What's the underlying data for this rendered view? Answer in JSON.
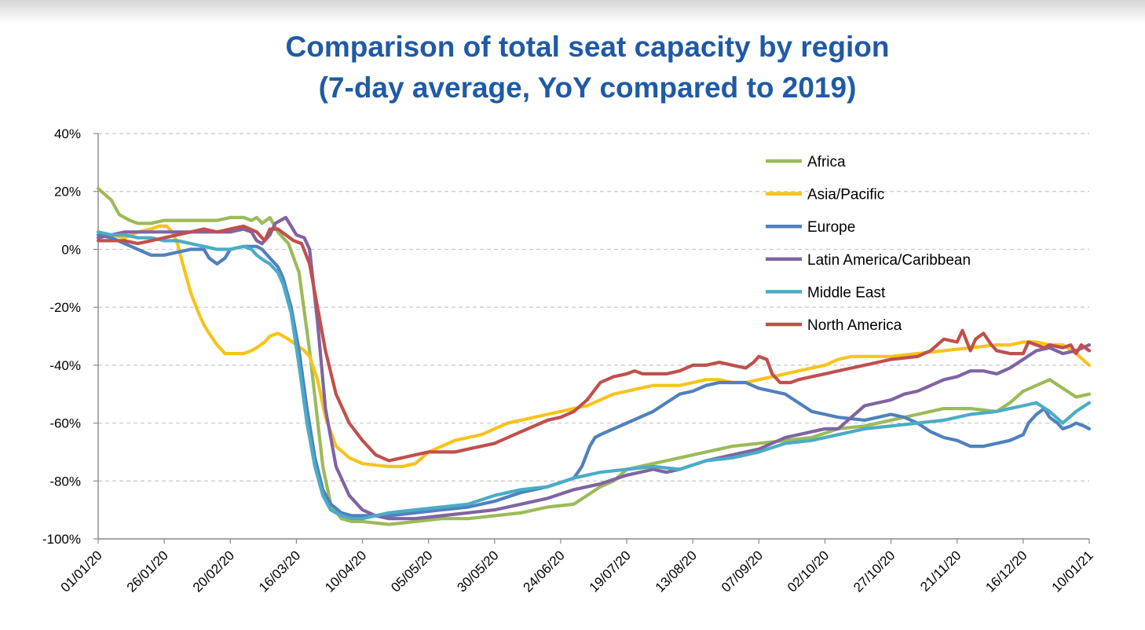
{
  "chart_data": {
    "type": "line",
    "title": "Comparison of total seat capacity by region",
    "subtitle": "(7-day average, YoY compared to 2019)",
    "xlabel": "",
    "ylabel": "",
    "ylim": [
      -100,
      40
    ],
    "y_ticks": [
      "40%",
      "20%",
      "0%",
      "-20%",
      "-40%",
      "-60%",
      "-80%",
      "-100%"
    ],
    "y_tick_values": [
      40,
      20,
      0,
      -20,
      -40,
      -60,
      -80,
      -100
    ],
    "x_tick_labels": [
      "01/01/20",
      "26/01/20",
      "20/02/20",
      "16/03/20",
      "10/04/20",
      "05/05/20",
      "30/05/20",
      "24/06/20",
      "19/07/20",
      "13/08/20",
      "07/09/20",
      "02/10/20",
      "27/10/20",
      "21/11/20",
      "16/12/20",
      "10/01/21"
    ],
    "x_tick_days": [
      0,
      25,
      50,
      75,
      100,
      125,
      150,
      175,
      200,
      225,
      250,
      275,
      300,
      325,
      350,
      375
    ],
    "xlim": [
      0,
      375
    ],
    "grid": "horizontal-dashed",
    "legend_position": "top-right",
    "series": [
      {
        "name": "Africa",
        "color": "#9bbb59",
        "x": [
          0,
          5,
          8,
          12,
          15,
          20,
          25,
          30,
          35,
          40,
          45,
          50,
          55,
          58,
          60,
          62,
          65,
          68,
          72,
          76,
          80,
          85,
          88,
          92,
          96,
          100,
          110,
          120,
          130,
          140,
          150,
          160,
          170,
          180,
          185,
          190,
          195,
          200,
          210,
          215,
          220,
          230,
          240,
          250,
          260,
          270,
          280,
          290,
          300,
          310,
          320,
          330,
          340,
          345,
          350,
          355,
          360,
          365,
          370,
          375
        ],
        "y": [
          21,
          17,
          12,
          10,
          9,
          9,
          10,
          10,
          10,
          10,
          10,
          11,
          11,
          10,
          11,
          9,
          11,
          6,
          2,
          -8,
          -35,
          -75,
          -88,
          -93,
          -94,
          -94,
          -95,
          -94,
          -93,
          -93,
          -92,
          -91,
          -89,
          -88,
          -85,
          -82,
          -80,
          -76,
          -74,
          -73,
          -72,
          -70,
          -68,
          -67,
          -66,
          -65,
          -62,
          -61,
          -59,
          -57,
          -55,
          -55,
          -56,
          -53,
          -49,
          -47,
          -45,
          -48,
          -51,
          -50
        ]
      },
      {
        "name": "Asia/Pacific",
        "color": "#f7c31c",
        "x": [
          0,
          5,
          10,
          15,
          20,
          23,
          26,
          28,
          30,
          32,
          35,
          38,
          40,
          42,
          45,
          48,
          50,
          55,
          58,
          60,
          63,
          65,
          68,
          72,
          75,
          78,
          80,
          83,
          86,
          90,
          95,
          100,
          110,
          115,
          120,
          125,
          130,
          135,
          140,
          145,
          150,
          155,
          160,
          165,
          170,
          175,
          180,
          185,
          190,
          195,
          200,
          205,
          210,
          215,
          220,
          225,
          230,
          235,
          240,
          245,
          250,
          255,
          260,
          265,
          270,
          275,
          280,
          285,
          290,
          300,
          310,
          320,
          330,
          340,
          345,
          350,
          355,
          360,
          365,
          370,
          375
        ],
        "y": [
          4,
          5,
          4,
          6,
          7,
          8,
          8,
          6,
          2,
          -5,
          -15,
          -22,
          -26,
          -29,
          -33,
          -36,
          -36,
          -36,
          -35,
          -34,
          -32,
          -30,
          -29,
          -31,
          -33,
          -35,
          -37,
          -45,
          -58,
          -68,
          -72,
          -74,
          -75,
          -75,
          -74,
          -70,
          -68,
          -66,
          -65,
          -64,
          -62,
          -60,
          -59,
          -58,
          -57,
          -56,
          -55,
          -54,
          -52,
          -50,
          -49,
          -48,
          -47,
          -47,
          -47,
          -46,
          -45,
          -45,
          -46,
          -46,
          -45,
          -44,
          -43,
          -42,
          -41,
          -40,
          -38,
          -37,
          -37,
          -37,
          -36,
          -35,
          -34,
          -33,
          -33,
          -32,
          -32,
          -33,
          -33,
          -36,
          -40
        ]
      },
      {
        "name": "Europe",
        "color": "#4f81bd",
        "x": [
          0,
          5,
          10,
          15,
          20,
          25,
          30,
          35,
          40,
          42,
          45,
          48,
          50,
          55,
          60,
          62,
          65,
          68,
          70,
          73,
          76,
          79,
          82,
          85,
          88,
          92,
          96,
          100,
          110,
          120,
          130,
          140,
          150,
          160,
          170,
          180,
          183,
          186,
          188,
          190,
          195,
          200,
          205,
          210,
          215,
          220,
          225,
          230,
          235,
          240,
          245,
          250,
          255,
          260,
          265,
          270,
          275,
          280,
          290,
          300,
          305,
          310,
          315,
          320,
          325,
          330,
          335,
          340,
          345,
          350,
          352,
          355,
          358,
          360,
          363,
          365,
          368,
          370,
          373,
          375
        ],
        "y": [
          5,
          4,
          2,
          0,
          -2,
          -2,
          -1,
          0,
          0,
          -3,
          -5,
          -3,
          0,
          1,
          1,
          0,
          -3,
          -6,
          -10,
          -20,
          -35,
          -55,
          -72,
          -83,
          -88,
          -91,
          -92,
          -92,
          -92,
          -91,
          -90,
          -89,
          -87,
          -84,
          -82,
          -79,
          -75,
          -68,
          -65,
          -64,
          -62,
          -60,
          -58,
          -56,
          -53,
          -50,
          -49,
          -47,
          -46,
          -46,
          -46,
          -48,
          -49,
          -50,
          -53,
          -56,
          -57,
          -58,
          -59,
          -57,
          -58,
          -60,
          -63,
          -65,
          -66,
          -68,
          -68,
          -67,
          -66,
          -64,
          -60,
          -57,
          -55,
          -58,
          -60,
          -62,
          -61,
          -60,
          -61,
          -62
        ]
      },
      {
        "name": "Latin America/Caribbean",
        "color": "#8064a2",
        "x": [
          0,
          5,
          10,
          15,
          20,
          25,
          30,
          35,
          40,
          45,
          50,
          55,
          58,
          60,
          62,
          65,
          67,
          69,
          71,
          73,
          75,
          78,
          80,
          83,
          86,
          90,
          95,
          100,
          105,
          110,
          120,
          130,
          140,
          150,
          160,
          170,
          180,
          190,
          200,
          210,
          215,
          220,
          230,
          240,
          250,
          260,
          270,
          275,
          280,
          285,
          290,
          300,
          305,
          310,
          315,
          320,
          325,
          330,
          335,
          340,
          345,
          350,
          355,
          360,
          365,
          370,
          375
        ],
        "y": [
          4,
          5,
          6,
          6,
          6,
          6,
          6,
          6,
          6,
          6,
          6,
          7,
          6,
          3,
          2,
          5,
          9,
          10,
          11,
          8,
          5,
          4,
          0,
          -25,
          -55,
          -75,
          -85,
          -90,
          -92,
          -93,
          -93,
          -92,
          -91,
          -90,
          -88,
          -86,
          -83,
          -81,
          -78,
          -76,
          -77,
          -76,
          -73,
          -71,
          -69,
          -65,
          -63,
          -62,
          -62,
          -58,
          -54,
          -52,
          -50,
          -49,
          -47,
          -45,
          -44,
          -42,
          -42,
          -43,
          -41,
          -38,
          -35,
          -34,
          -36,
          -35,
          -33
        ]
      },
      {
        "name": "Middle East",
        "color": "#4bacc6",
        "x": [
          0,
          5,
          10,
          15,
          20,
          25,
          30,
          35,
          40,
          45,
          50,
          55,
          58,
          60,
          63,
          65,
          68,
          70,
          73,
          76,
          79,
          82,
          85,
          88,
          92,
          96,
          100,
          110,
          120,
          130,
          140,
          150,
          160,
          170,
          180,
          190,
          200,
          210,
          220,
          230,
          240,
          250,
          260,
          270,
          280,
          290,
          300,
          310,
          320,
          330,
          340,
          345,
          350,
          355,
          360,
          365,
          370,
          375
        ],
        "y": [
          6,
          5,
          5,
          4,
          4,
          3,
          3,
          2,
          1,
          0,
          0,
          1,
          0,
          -2,
          -4,
          -5,
          -8,
          -12,
          -22,
          -40,
          -60,
          -75,
          -85,
          -90,
          -92,
          -93,
          -93,
          -91,
          -90,
          -89,
          -88,
          -85,
          -83,
          -82,
          -79,
          -77,
          -76,
          -75,
          -76,
          -73,
          -72,
          -70,
          -67,
          -66,
          -64,
          -62,
          -61,
          -60,
          -59,
          -57,
          -56,
          -55,
          -54,
          -53,
          -56,
          -60,
          -56,
          -53
        ]
      },
      {
        "name": "North America",
        "color": "#c0504d",
        "x": [
          0,
          5,
          10,
          15,
          20,
          25,
          30,
          35,
          40,
          45,
          50,
          55,
          60,
          63,
          65,
          68,
          71,
          74,
          77,
          80,
          83,
          86,
          90,
          95,
          100,
          105,
          110,
          115,
          120,
          125,
          130,
          135,
          140,
          145,
          150,
          155,
          160,
          165,
          170,
          175,
          180,
          185,
          190,
          195,
          200,
          203,
          206,
          210,
          215,
          220,
          225,
          230,
          235,
          240,
          245,
          248,
          250,
          253,
          255,
          258,
          262,
          265,
          270,
          275,
          280,
          285,
          290,
          300,
          310,
          315,
          320,
          325,
          327,
          330,
          332,
          335,
          338,
          340,
          345,
          350,
          352,
          355,
          358,
          360,
          365,
          368,
          370,
          372,
          375
        ],
        "y": [
          3,
          3,
          3,
          2,
          3,
          4,
          5,
          6,
          7,
          6,
          7,
          8,
          6,
          3,
          7,
          7,
          5,
          3,
          2,
          -5,
          -20,
          -35,
          -50,
          -60,
          -66,
          -71,
          -73,
          -72,
          -71,
          -70,
          -70,
          -70,
          -69,
          -68,
          -67,
          -65,
          -63,
          -61,
          -59,
          -58,
          -56,
          -52,
          -46,
          -44,
          -43,
          -42,
          -43,
          -43,
          -43,
          -42,
          -40,
          -40,
          -39,
          -40,
          -41,
          -39,
          -37,
          -38,
          -43,
          -46,
          -46,
          -45,
          -44,
          -43,
          -42,
          -41,
          -40,
          -38,
          -37,
          -35,
          -31,
          -32,
          -28,
          -35,
          -31,
          -29,
          -33,
          -35,
          -36,
          -36,
          -32,
          -33,
          -34,
          -33,
          -34,
          -33,
          -36,
          -33,
          -35
        ]
      }
    ]
  }
}
